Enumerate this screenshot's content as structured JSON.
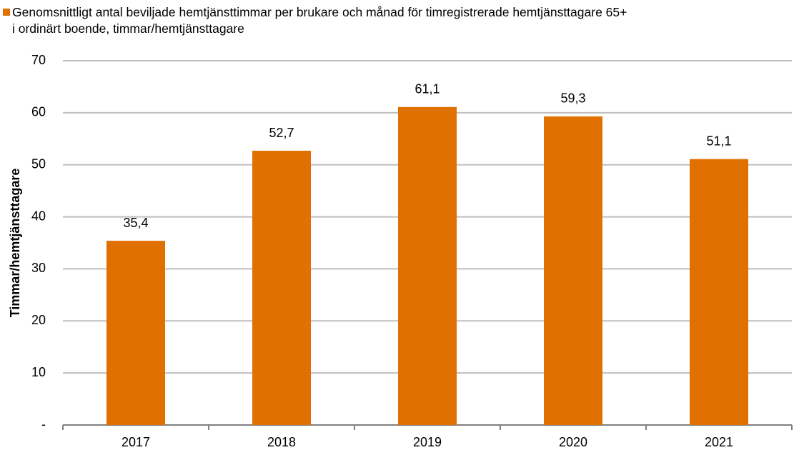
{
  "chart_data": {
    "type": "bar",
    "ylabel": "Timmar/hemtjänsttagare",
    "categories": [
      "2017",
      "2018",
      "2019",
      "2020",
      "2021"
    ],
    "series": [
      {
        "name": "Genomsnittligt antal beviljade hemtjänsttimmar per brukare och månad för timregistrerade hemtjänsttagare 65+\ni ordinärt boende, timmar/hemtjänsttagare",
        "color": "#e07000",
        "values": [
          35.4,
          52.7,
          61.1,
          59.3,
          51.1
        ],
        "value_labels": [
          "35,4",
          "52,7",
          "61,1",
          "59,3",
          "51,1"
        ]
      }
    ],
    "ylim": [
      0,
      70
    ],
    "yticks": [
      {
        "value": 0,
        "label": "-"
      },
      10,
      20,
      30,
      40,
      50,
      60,
      70
    ],
    "grid": true,
    "legend": "top-left"
  }
}
